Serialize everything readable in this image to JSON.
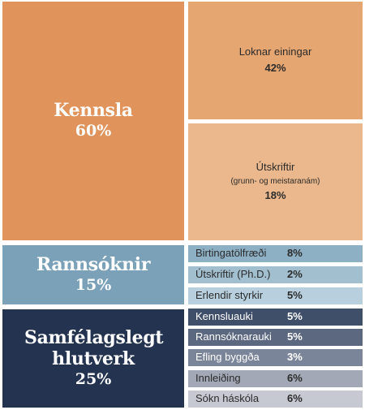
{
  "chart_data": {
    "type": "treemap",
    "colors": {
      "kennsla": "#e0935a",
      "loknar": "#e6a672",
      "utskriftir": "#eab88c",
      "rannsoknir": "#7aa1b8",
      "samfelag": "#243450"
    },
    "groups": [
      {
        "label": "Kennsla",
        "value": 60,
        "value_text": "60%",
        "children": [
          {
            "label": "Loknar einingar",
            "note": "",
            "value": 42,
            "value_text": "42%"
          },
          {
            "label": "Útskriftir",
            "note": "(grunn- og meistaranám)",
            "value": 18,
            "value_text": "18%"
          }
        ]
      },
      {
        "label": "Rannsóknir",
        "value": 15,
        "value_text": "15%",
        "children": [
          {
            "label": "Birtingatölfræði",
            "value": 8,
            "value_text": "8%",
            "color": "#8eb0c5"
          },
          {
            "label": "Útskriftir (Ph.D.)",
            "value": 2,
            "value_text": "2%",
            "color": "#a2bfd0"
          },
          {
            "label": "Erlendir styrkir",
            "value": 5,
            "value_text": "5%",
            "color": "#b8d0de"
          }
        ]
      },
      {
        "label": "Samfélagslegt hlutverk",
        "value": 25,
        "value_text": "25%",
        "children": [
          {
            "label": "Kennsluauki",
            "value": 5,
            "value_text": "5%",
            "color": "#3f4e69",
            "text_color": "#ffffff"
          },
          {
            "label": "Rannsóknarauki",
            "value": 5,
            "value_text": "5%",
            "color": "#5b6880",
            "text_color": "#ffffff"
          },
          {
            "label": "Efling byggða",
            "value": 3,
            "value_text": "3%",
            "color": "#7b8599",
            "text_color": "#ffffff"
          },
          {
            "label": "Innleiðing",
            "value": 6,
            "value_text": "6%",
            "color": "#a2a8b6",
            "text_color": "#2b2b2b"
          },
          {
            "label": "Sókn háskóla",
            "value": 6,
            "value_text": "6%",
            "color": "#c6c9d2",
            "text_color": "#2b2b2b"
          }
        ]
      }
    ]
  }
}
